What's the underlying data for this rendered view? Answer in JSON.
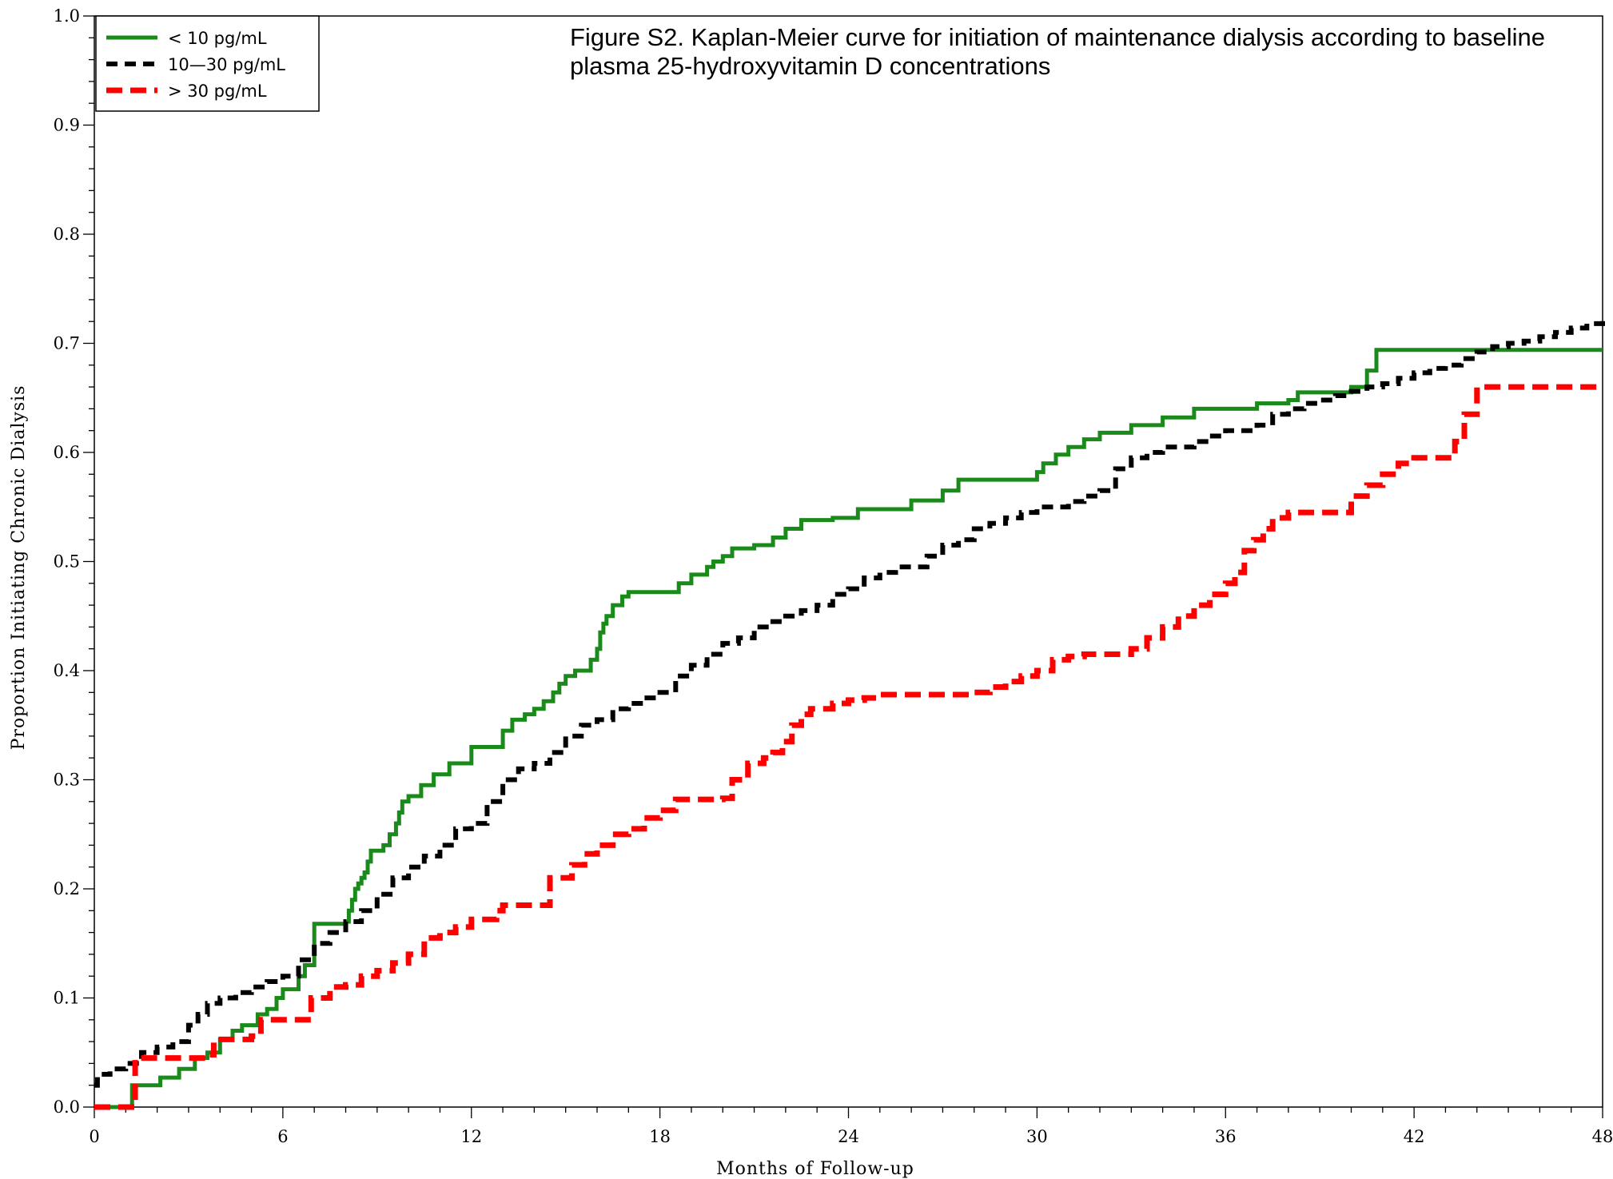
{
  "chart_data": {
    "type": "line",
    "step": true,
    "title_lines": [
      "Figure S2. Kaplan-Meier curve for initiation of maintenance dialysis according to baseline",
      "plasma 25-hydroxyvitamin D concentrations"
    ],
    "xlabel": "Months of Follow-up",
    "ylabel": "Proportion Initiating Chronic Dialysis",
    "xlim": [
      0,
      48
    ],
    "ylim": [
      0,
      1
    ],
    "xticks": [
      "0",
      "6",
      "12",
      "18",
      "24",
      "30",
      "36",
      "42",
      "48"
    ],
    "yticks": [
      "0.0",
      "0.1",
      "0.2",
      "0.3",
      "0.4",
      "0.5",
      "0.6",
      "0.7",
      "0.8",
      "0.9",
      "1.0"
    ],
    "grid": false,
    "legend_position": "top-left",
    "series": [
      {
        "name": "< 10 pg/mL",
        "color": "#1a8a1a",
        "dash": "solid",
        "x": [
          0,
          0.3,
          1.2,
          2.1,
          2.7,
          3.2,
          3.6,
          4.0,
          4.4,
          4.7,
          5.2,
          5.5,
          5.8,
          6.0,
          6.5,
          6.7,
          7.0,
          7.5,
          8.0,
          8.1,
          8.2,
          8.3,
          8.4,
          8.5,
          8.6,
          8.7,
          8.8,
          9.0,
          9.2,
          9.4,
          9.6,
          9.7,
          9.8,
          10.0,
          10.4,
          10.8,
          11.3,
          12.0,
          12.7,
          13.0,
          13.3,
          13.7,
          14.0,
          14.3,
          14.6,
          14.8,
          15.0,
          15.3,
          15.8,
          16.0,
          16.1,
          16.2,
          16.3,
          16.5,
          16.8,
          17.0,
          17.5,
          18.0,
          18.6,
          19.0,
          19.5,
          19.7,
          20.0,
          20.3,
          20.8,
          21.0,
          21.6,
          22.0,
          22.5,
          23.5,
          24.3,
          25.0,
          25.4,
          26.0,
          26.5,
          27.0,
          27.5,
          28.0,
          29.0,
          30.0,
          30.2,
          30.6,
          31.0,
          31.5,
          32.0,
          32.5,
          33.0,
          33.5,
          34.0,
          34.5,
          35.0,
          35.5,
          36.0,
          37.0,
          38.0,
          38.3,
          39.0,
          40.0,
          40.5,
          40.8,
          41.5,
          42.0,
          43.0,
          44.0,
          45.0,
          46.0,
          47.0,
          48.0
        ],
        "y": [
          0.0,
          0.0,
          0.02,
          0.027,
          0.035,
          0.045,
          0.05,
          0.062,
          0.07,
          0.075,
          0.085,
          0.09,
          0.1,
          0.108,
          0.12,
          0.13,
          0.168,
          0.168,
          0.17,
          0.18,
          0.19,
          0.2,
          0.205,
          0.21,
          0.215,
          0.225,
          0.235,
          0.235,
          0.24,
          0.25,
          0.26,
          0.27,
          0.28,
          0.285,
          0.295,
          0.305,
          0.315,
          0.33,
          0.33,
          0.345,
          0.355,
          0.36,
          0.365,
          0.372,
          0.38,
          0.388,
          0.395,
          0.4,
          0.41,
          0.42,
          0.435,
          0.443,
          0.45,
          0.46,
          0.468,
          0.472,
          0.472,
          0.472,
          0.48,
          0.488,
          0.495,
          0.5,
          0.505,
          0.512,
          0.512,
          0.515,
          0.522,
          0.53,
          0.538,
          0.54,
          0.548,
          0.548,
          0.548,
          0.556,
          0.556,
          0.565,
          0.575,
          0.575,
          0.575,
          0.582,
          0.59,
          0.598,
          0.605,
          0.612,
          0.618,
          0.618,
          0.625,
          0.625,
          0.632,
          0.632,
          0.64,
          0.64,
          0.64,
          0.645,
          0.648,
          0.655,
          0.655,
          0.66,
          0.675,
          0.694,
          0.694,
          0.694,
          0.694,
          0.694,
          0.694,
          0.694,
          0.694,
          0.694
        ]
      },
      {
        "name": "10—30 pg/mL",
        "color": "#000000",
        "dash": "dashed",
        "x": [
          0,
          0.1,
          0.5,
          1.0,
          1.5,
          2.0,
          2.5,
          3.0,
          3.3,
          3.6,
          4.0,
          4.5,
          5.0,
          5.5,
          6.0,
          6.5,
          7.0,
          7.5,
          8.0,
          8.5,
          9.0,
          9.5,
          10.0,
          10.5,
          11.0,
          11.5,
          12.0,
          12.5,
          13.0,
          13.5,
          14.0,
          14.5,
          15.0,
          15.5,
          16.0,
          16.5,
          17.0,
          17.5,
          18.0,
          18.5,
          19.0,
          19.5,
          20.0,
          20.5,
          21.0,
          21.5,
          22.0,
          22.5,
          23.0,
          23.5,
          24.0,
          24.5,
          25.0,
          25.5,
          26.0,
          26.5,
          27.0,
          27.5,
          28.0,
          28.5,
          29.0,
          29.5,
          30.0,
          30.5,
          31.0,
          31.5,
          32.0,
          32.5,
          33.0,
          33.5,
          34.0,
          34.5,
          35.0,
          35.5,
          36.0,
          36.5,
          37.0,
          37.5,
          38.0,
          38.5,
          39.0,
          39.5,
          40.0,
          40.5,
          41.0,
          41.5,
          42.0,
          42.5,
          43.0,
          43.5,
          44.0,
          44.5,
          45.0,
          45.5,
          46.0,
          46.5,
          47.0,
          47.5,
          48.0
        ],
        "y": [
          0.02,
          0.03,
          0.035,
          0.04,
          0.05,
          0.055,
          0.06,
          0.075,
          0.085,
          0.095,
          0.1,
          0.105,
          0.11,
          0.115,
          0.12,
          0.135,
          0.15,
          0.16,
          0.17,
          0.18,
          0.195,
          0.21,
          0.22,
          0.23,
          0.24,
          0.255,
          0.26,
          0.28,
          0.3,
          0.31,
          0.315,
          0.325,
          0.34,
          0.35,
          0.355,
          0.365,
          0.37,
          0.375,
          0.38,
          0.395,
          0.405,
          0.415,
          0.425,
          0.43,
          0.44,
          0.445,
          0.45,
          0.455,
          0.46,
          0.47,
          0.475,
          0.485,
          0.49,
          0.495,
          0.495,
          0.505,
          0.515,
          0.52,
          0.53,
          0.535,
          0.54,
          0.545,
          0.55,
          0.55,
          0.555,
          0.56,
          0.565,
          0.585,
          0.595,
          0.6,
          0.605,
          0.605,
          0.61,
          0.615,
          0.62,
          0.62,
          0.625,
          0.635,
          0.64,
          0.645,
          0.648,
          0.652,
          0.656,
          0.66,
          0.663,
          0.668,
          0.673,
          0.677,
          0.68,
          0.686,
          0.692,
          0.697,
          0.7,
          0.702,
          0.706,
          0.71,
          0.714,
          0.718,
          0.724
        ]
      },
      {
        "name": "> 30 pg/mL",
        "color": "#ff0000",
        "dash": "dashed",
        "x": [
          0,
          0.1,
          1.2,
          1.3,
          3.6,
          3.8,
          5.0,
          5.3,
          6.7,
          6.9,
          7.5,
          8.0,
          8.5,
          9.0,
          9.5,
          10.0,
          10.5,
          11.0,
          11.5,
          12.0,
          12.8,
          13.0,
          14.5,
          14.8,
          15.2,
          15.6,
          16.0,
          16.5,
          17.0,
          17.5,
          18.0,
          18.5,
          20.0,
          20.3,
          20.8,
          21.3,
          21.6,
          21.9,
          22.2,
          22.5,
          22.8,
          23.5,
          24.0,
          24.5,
          25.0,
          25.5,
          26.0,
          26.5,
          27.0,
          27.5,
          28.0,
          28.5,
          29.0,
          29.5,
          30.0,
          30.5,
          31.0,
          31.5,
          32.0,
          32.5,
          33.0,
          33.5,
          34.0,
          34.5,
          35.0,
          35.5,
          36.0,
          36.3,
          36.6,
          36.9,
          37.2,
          37.5,
          38.0,
          38.5,
          39.0,
          39.5,
          40.0,
          40.5,
          41.0,
          41.5,
          42.0,
          42.5,
          43.0,
          43.3,
          43.6,
          44.0,
          45.0,
          46.0,
          47.0,
          48.0
        ],
        "y": [
          0.0,
          0.0,
          0.0,
          0.045,
          0.048,
          0.062,
          0.065,
          0.08,
          0.08,
          0.1,
          0.11,
          0.112,
          0.12,
          0.125,
          0.132,
          0.14,
          0.155,
          0.16,
          0.165,
          0.172,
          0.18,
          0.185,
          0.21,
          0.21,
          0.222,
          0.232,
          0.24,
          0.25,
          0.255,
          0.265,
          0.272,
          0.282,
          0.283,
          0.3,
          0.315,
          0.32,
          0.325,
          0.335,
          0.35,
          0.36,
          0.365,
          0.37,
          0.373,
          0.375,
          0.378,
          0.378,
          0.378,
          0.378,
          0.378,
          0.378,
          0.38,
          0.385,
          0.39,
          0.395,
          0.4,
          0.41,
          0.413,
          0.415,
          0.415,
          0.415,
          0.42,
          0.43,
          0.44,
          0.45,
          0.46,
          0.47,
          0.48,
          0.49,
          0.51,
          0.52,
          0.53,
          0.54,
          0.545,
          0.545,
          0.545,
          0.545,
          0.56,
          0.57,
          0.58,
          0.59,
          0.595,
          0.595,
          0.595,
          0.61,
          0.635,
          0.66,
          0.66,
          0.66,
          0.66,
          0.66
        ]
      }
    ]
  }
}
